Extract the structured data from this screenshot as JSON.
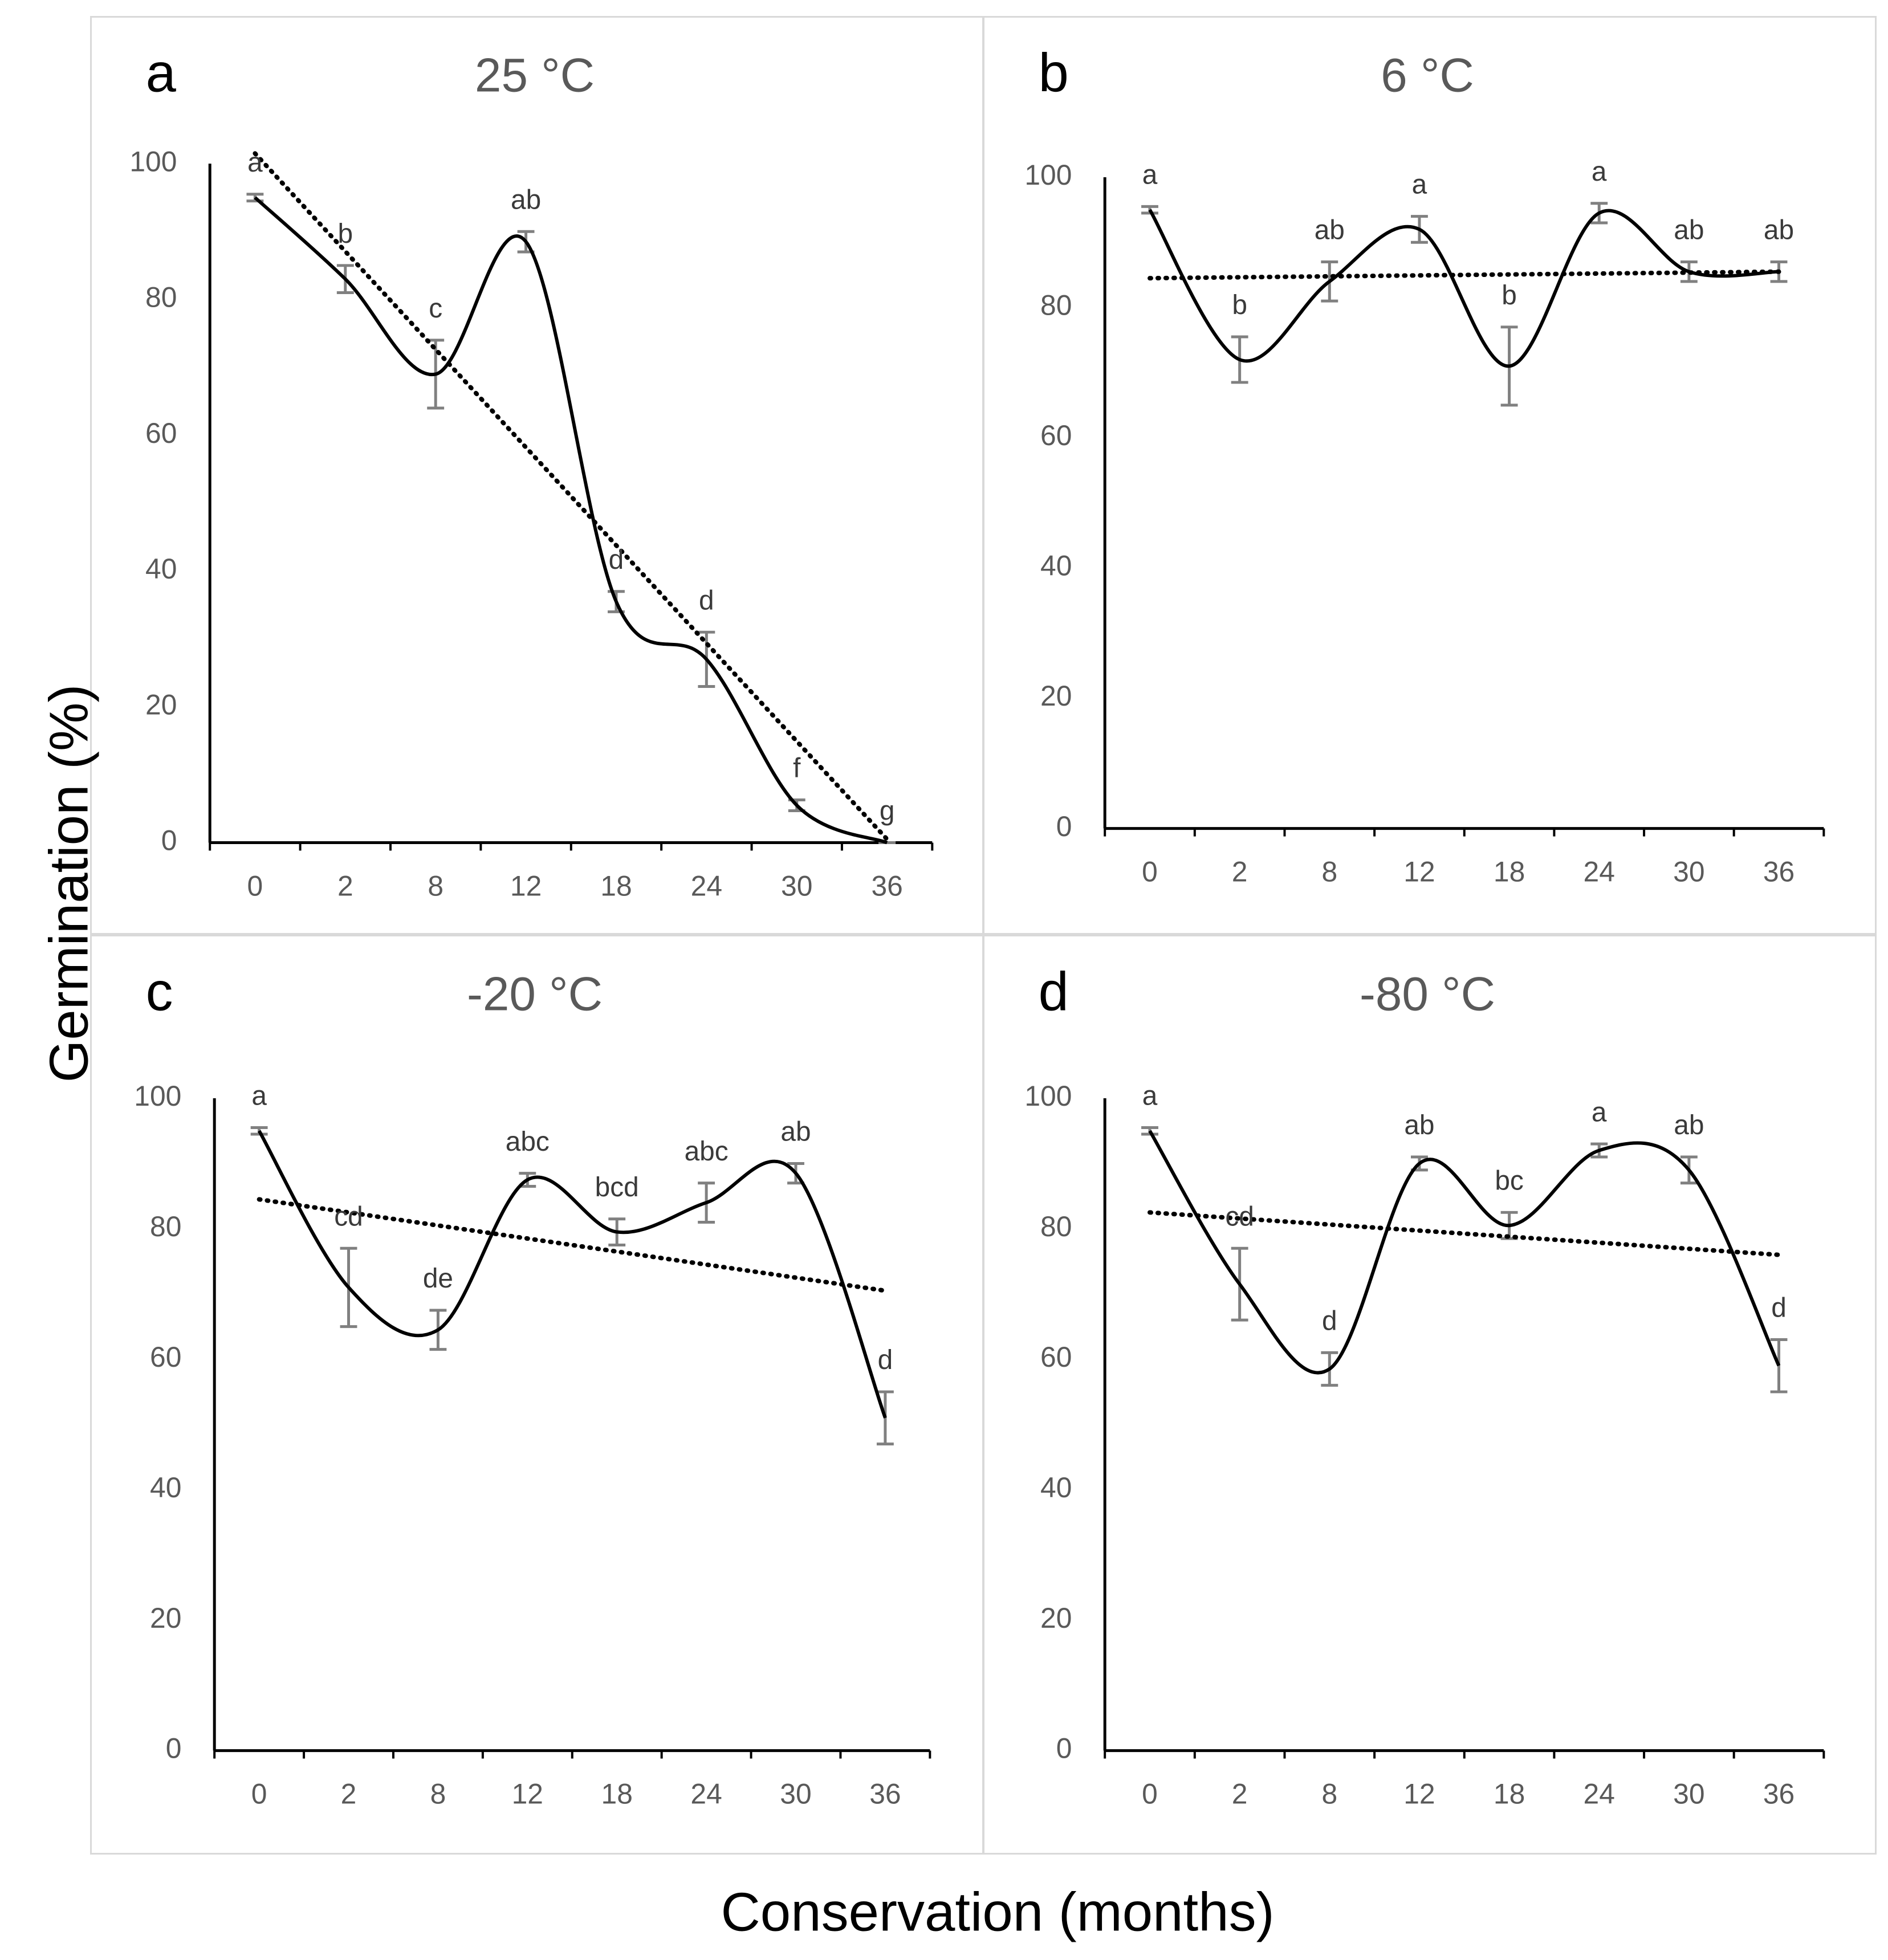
{
  "figure": {
    "ylabel": "Germination (%)",
    "xlabel": "Conservation (months)",
    "line_color": "#000000",
    "errorbar_color": "#808080",
    "axis_text_color": "#595959",
    "border_color": "#d9d9d9"
  },
  "chart_data": [
    {
      "type": "line",
      "panel_label": "a",
      "title": "25 °C",
      "categories": [
        "0",
        "2",
        "8",
        "12",
        "18",
        "24",
        "30",
        "36"
      ],
      "ylim": [
        0,
        100
      ],
      "yticks": [
        "0",
        "20",
        "40",
        "60",
        "80",
        "100"
      ],
      "series": [
        {
          "name": "Germination",
          "values": [
            95,
            83,
            69,
            88.5,
            35.5,
            27,
            5.5,
            0
          ],
          "errors": [
            0.5,
            2,
            5,
            1.5,
            1.5,
            4,
            0.8,
            0
          ]
        }
      ],
      "letters": [
        "a",
        "b",
        "c",
        "ab",
        "d",
        "d",
        "f",
        "g"
      ],
      "trendline": [
        101.5,
        0.5
      ]
    },
    {
      "type": "line",
      "panel_label": "b",
      "title": "6 °C",
      "categories": [
        "0",
        "2",
        "8",
        "12",
        "18",
        "24",
        "30",
        "36"
      ],
      "ylim": [
        0,
        100
      ],
      "yticks": [
        "0",
        "20",
        "40",
        "60",
        "80",
        "100"
      ],
      "series": [
        {
          "name": "Germination",
          "values": [
            95,
            72,
            84,
            92,
            71,
            94.5,
            85.5,
            85.5
          ],
          "errors": [
            0.5,
            3.5,
            3,
            2,
            6,
            1.5,
            1.5,
            1.5
          ]
        }
      ],
      "letters": [
        "a",
        "b",
        "ab",
        "a",
        "b",
        "a",
        "ab",
        "ab"
      ],
      "trendline": [
        84.5,
        85.5
      ]
    },
    {
      "type": "line",
      "panel_label": "c",
      "title": "-20 °C",
      "categories": [
        "0",
        "2",
        "8",
        "12",
        "18",
        "24",
        "30",
        "36"
      ],
      "ylim": [
        0,
        100
      ],
      "yticks": [
        "0",
        "20",
        "40",
        "60",
        "80",
        "100"
      ],
      "series": [
        {
          "name": "Germination",
          "values": [
            95,
            71,
            64.5,
            87.5,
            79.5,
            84,
            88.5,
            51
          ],
          "errors": [
            0.5,
            6,
            3,
            1,
            2,
            3,
            1.5,
            4
          ]
        }
      ],
      "letters": [
        "a",
        "cd",
        "de",
        "abc",
        "bcd",
        "abc",
        "ab",
        "d"
      ],
      "trendline": [
        84.5,
        70.5
      ]
    },
    {
      "type": "line",
      "panel_label": "d",
      "title": "-80 °C",
      "categories": [
        "0",
        "2",
        "8",
        "12",
        "18",
        "24",
        "30",
        "36"
      ],
      "ylim": [
        0,
        100
      ],
      "yticks": [
        "0",
        "20",
        "40",
        "60",
        "80",
        "100"
      ],
      "series": [
        {
          "name": "Germination",
          "values": [
            95,
            71.5,
            58.5,
            90,
            80.5,
            92,
            89,
            59
          ],
          "errors": [
            0.5,
            5.5,
            2.5,
            1,
            2,
            1,
            2,
            4
          ]
        }
      ],
      "letters": [
        "a",
        "cd",
        "d",
        "ab",
        "bc",
        "a",
        "ab",
        "d"
      ],
      "trendline": [
        82.5,
        76
      ]
    }
  ]
}
